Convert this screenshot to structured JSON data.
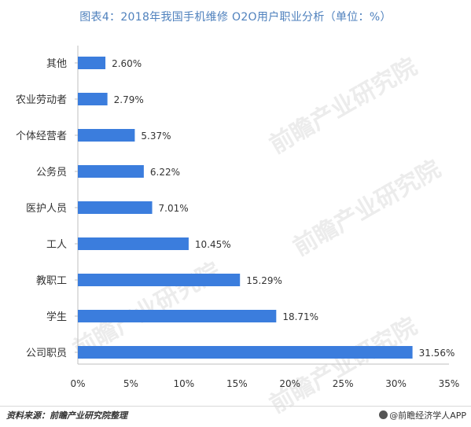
{
  "title": "图表4：2018年我国手机维修 O2O用户职业分析（单位：%）",
  "source": "资料来源：前瞻产业研究院整理",
  "brand": "@前瞻经济学人APP",
  "watermark": "前瞻产业研究院",
  "colors": {
    "bar": "#3b7ddd",
    "axis": "#bfbfbf",
    "text": "#333333"
  },
  "chart_data": {
    "type": "bar",
    "orientation": "horizontal",
    "categories": [
      "其他",
      "农业劳动者",
      "个体经营者",
      "公务员",
      "医护人员",
      "工人",
      "教职工",
      "学生",
      "公司职员"
    ],
    "values": [
      2.6,
      2.79,
      5.37,
      6.22,
      7.01,
      10.45,
      15.29,
      18.71,
      31.56
    ],
    "value_labels": [
      "2.60%",
      "2.79%",
      "5.37%",
      "6.22%",
      "7.01%",
      "10.45%",
      "15.29%",
      "18.71%",
      "31.56%"
    ],
    "xlim": [
      0,
      35
    ],
    "xticks": [
      0,
      5,
      10,
      15,
      20,
      25,
      30,
      35
    ],
    "xtick_labels": [
      "0%",
      "5%",
      "10%",
      "15%",
      "20%",
      "25%",
      "30%",
      "35%"
    ],
    "grid": false
  }
}
